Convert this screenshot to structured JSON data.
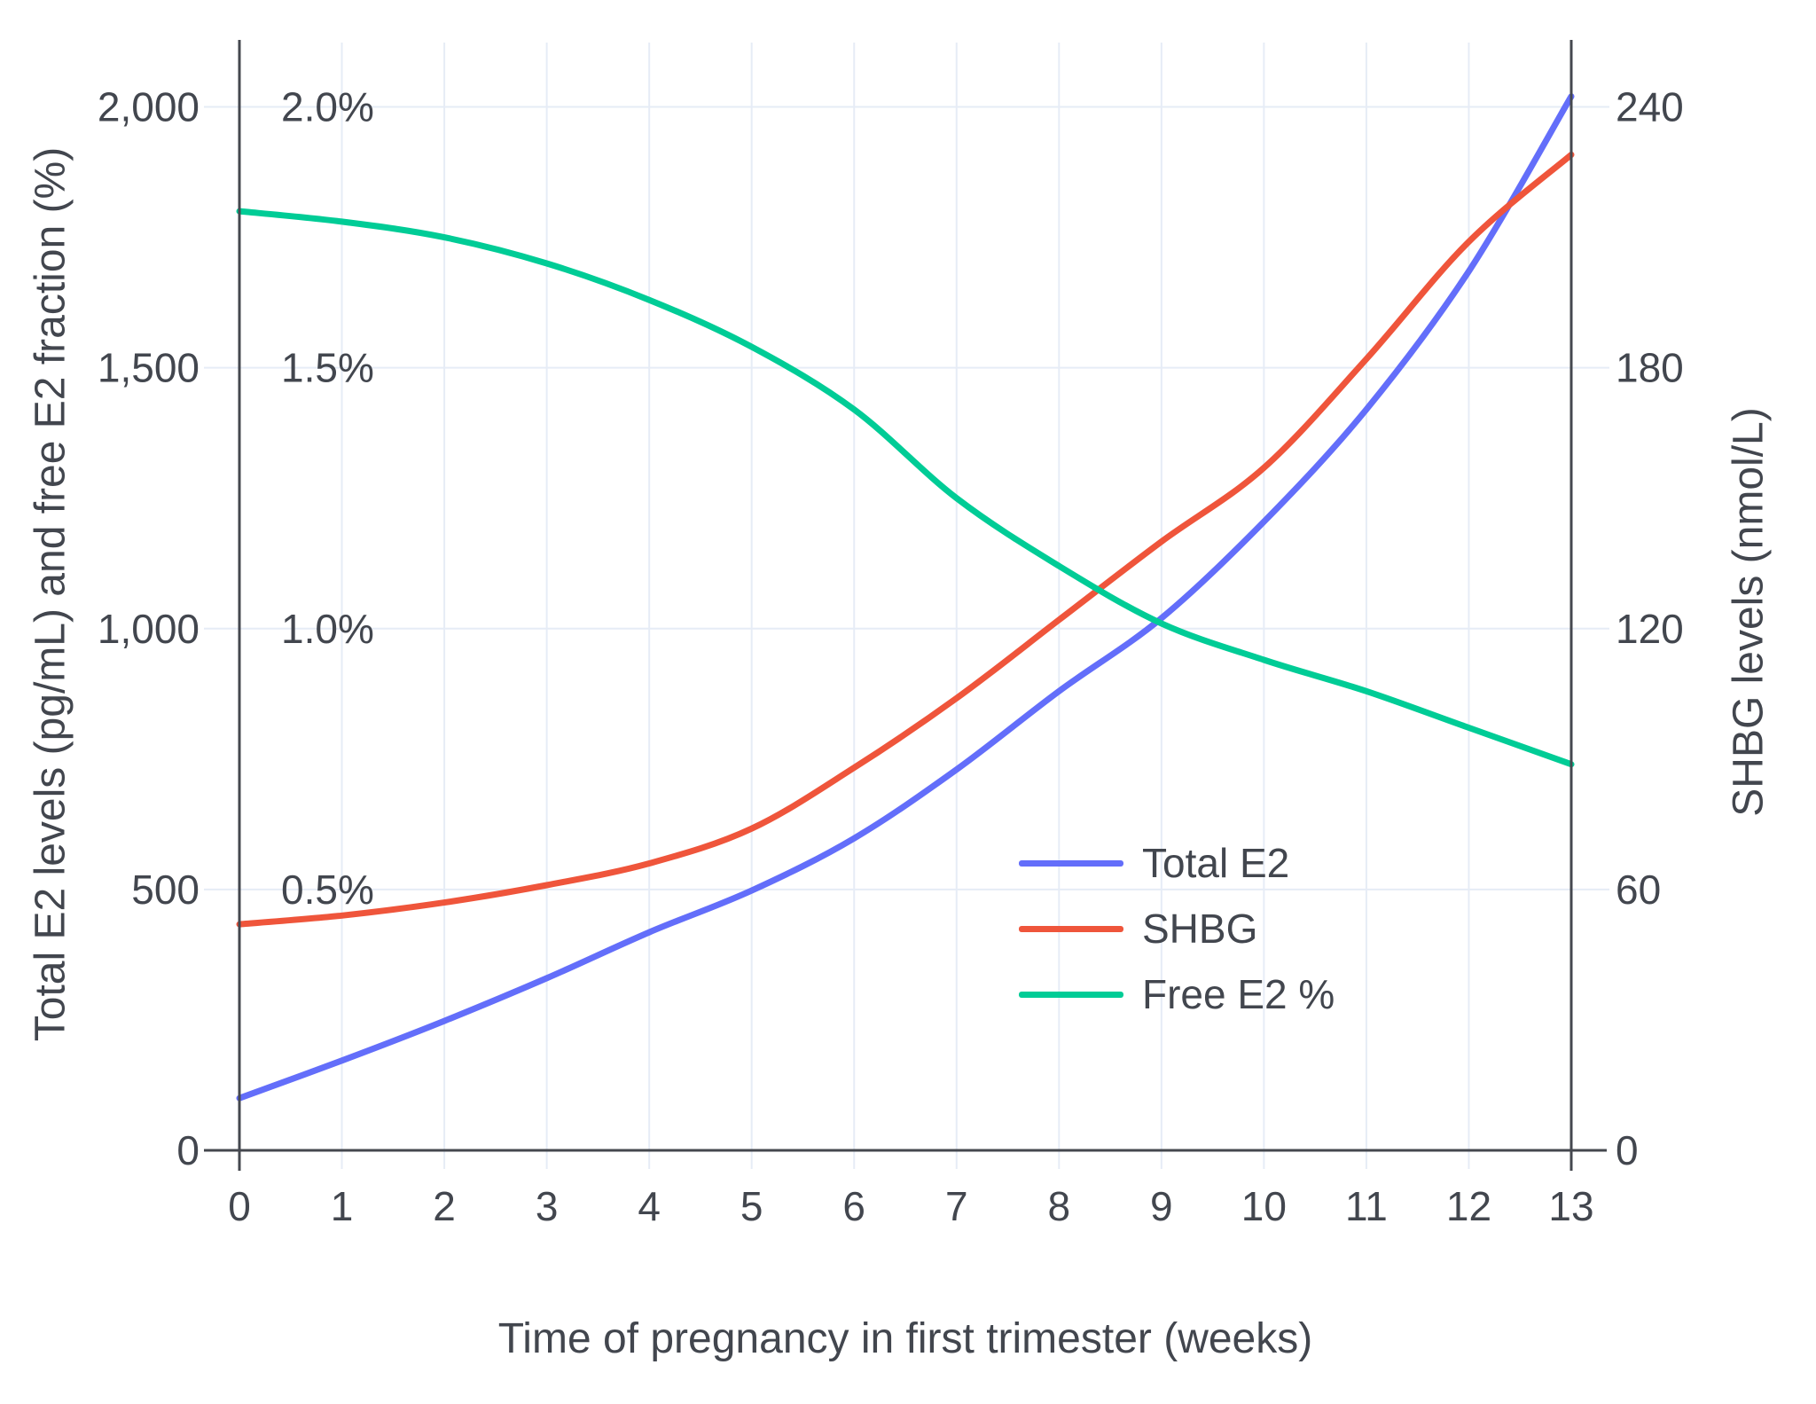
{
  "chart": {
    "x_axis": {
      "title": "Time of pregnancy in first trimester (weeks)",
      "tick_labels": [
        "0",
        "1",
        "2",
        "3",
        "4",
        "5",
        "6",
        "7",
        "8",
        "9",
        "10",
        "11",
        "12",
        "13"
      ],
      "tick_values": [
        0,
        1,
        2,
        3,
        4,
        5,
        6,
        7,
        8,
        9,
        10,
        11,
        12,
        13
      ]
    },
    "left_axis": {
      "title": "Total E2 levels (pg/mL) and free E2 fraction (%)",
      "ticks": [
        {
          "label": "0",
          "value": 0
        },
        {
          "label": "500",
          "value": 500
        },
        {
          "label": "1,000",
          "value": 1000
        },
        {
          "label": "1,500",
          "value": 1500
        },
        {
          "label": "2,000",
          "value": 2000
        }
      ],
      "pct_labels": [
        {
          "label": "0.5%",
          "value": 500
        },
        {
          "label": "1.0%",
          "value": 1000
        },
        {
          "label": "1.5%",
          "value": 1500
        },
        {
          "label": "2.0%",
          "value": 2000
        }
      ]
    },
    "right_axis": {
      "title": "SHBG levels (nmol/L)",
      "ticks": [
        {
          "label": "0",
          "value": 0
        },
        {
          "label": "60",
          "value": 60
        },
        {
          "label": "120",
          "value": 120
        },
        {
          "label": "180",
          "value": 180
        },
        {
          "label": "240",
          "value": 240
        }
      ]
    },
    "legend": {
      "items": [
        {
          "label": "Total E2",
          "color": "#636EFA"
        },
        {
          "label": "SHBG",
          "color": "#EF553B"
        },
        {
          "label": "Free E2 %",
          "color": "#00CC96"
        }
      ]
    },
    "colors": {
      "grid": "#e6ecf6",
      "axis_line": "#45484f",
      "text": "#42464e",
      "background": "#ffffff"
    }
  },
  "chart_data": {
    "type": "line",
    "title": "",
    "xlabel": "Time of pregnancy in first trimester (weeks)",
    "x": [
      0,
      1,
      2,
      3,
      4,
      5,
      6,
      7,
      8,
      9,
      10,
      11,
      12,
      13
    ],
    "x_range": [
      0,
      13
    ],
    "grid": true,
    "legend_position": "inside-right-middle",
    "axes": {
      "left": {
        "label": "Total E2 levels (pg/mL) and free E2 fraction (%)",
        "range": [
          0,
          2000
        ],
        "pct_range": [
          0,
          2.0
        ]
      },
      "right": {
        "label": "SHBG levels (nmol/L)",
        "range": [
          0,
          240
        ]
      }
    },
    "series": [
      {
        "name": "Total E2",
        "units": "pg/mL",
        "axis": "left",
        "color": "#636EFA",
        "values": [
          100,
          172,
          248,
          330,
          418,
          498,
          598,
          730,
          880,
          1020,
          1205,
          1420,
          1685,
          2020
        ]
      },
      {
        "name": "SHBG",
        "units": "nmol/L",
        "axis": "right",
        "color": "#EF553B",
        "values": [
          52,
          54,
          57,
          61,
          66,
          74,
          88,
          104,
          122,
          140,
          157,
          182,
          209,
          229
        ]
      },
      {
        "name": "Free E2 %",
        "units": "%",
        "axis": "left-percent",
        "color": "#00CC96",
        "values": [
          1.8,
          1.78,
          1.75,
          1.7,
          1.63,
          1.54,
          1.42,
          1.25,
          1.12,
          1.01,
          0.94,
          0.88,
          0.81,
          0.74
        ]
      }
    ]
  }
}
